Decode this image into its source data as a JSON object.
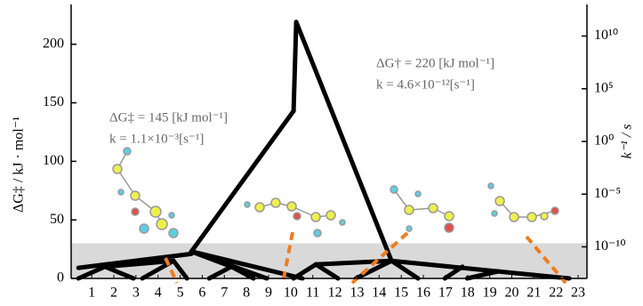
{
  "chart_data": {
    "type": "line",
    "y_label": "ΔG‡ / kJ · mol⁻¹",
    "y2_label": "k⁻¹ / s",
    "annotations": [
      {
        "text": "ΔG‡ = 145 [kJ mol⁻¹]"
      },
      {
        "text": "k = 1.1×10⁻³[s⁻¹]"
      },
      {
        "text": "ΔG† = 220 [kJ mol⁻¹]"
      },
      {
        "text": "k = 4.6×10⁻¹²[s⁻¹]"
      }
    ],
    "xlim": [
      0.07,
      23.4
    ],
    "xticks": [
      1,
      2,
      3,
      4,
      5,
      6,
      7,
      8,
      9,
      10,
      11,
      12,
      13,
      14,
      15,
      16,
      17,
      18,
      19,
      20,
      21,
      22,
      23
    ],
    "ylim": [
      0,
      234
    ],
    "yticks": [
      0,
      50,
      100,
      150,
      200
    ],
    "y2lim": [
      1e-13,
      10000000000000.0
    ],
    "y2log": true,
    "y2ticks": [
      {
        "value": 10000000000.0,
        "label": "10¹⁰"
      },
      {
        "value": 100000.0,
        "label": "10⁵"
      },
      {
        "value": 1,
        "label": "10⁰"
      },
      {
        "value": 1e-05,
        "label": "10⁻⁵"
      },
      {
        "value": 1e-10,
        "label": "10⁻¹⁰"
      }
    ],
    "band": [
      0,
      30
    ],
    "band_color": "#d9d9d9",
    "color": "#000000",
    "segments": [
      [
        5.51,
        23,
        10.13,
        143
      ],
      [
        10.13,
        143,
        10.25,
        219
      ],
      [
        10.25,
        219,
        14.56,
        15
      ],
      [
        0.4,
        9,
        5.51,
        21
      ],
      [
        0.4,
        0,
        1.6,
        10
      ],
      [
        1.6,
        10,
        2.89,
        0
      ],
      [
        1.6,
        10,
        4.7,
        15
      ],
      [
        4.7,
        15,
        5.31,
        0
      ],
      [
        3.29,
        0,
        4.7,
        15
      ],
      [
        5.51,
        23,
        8.92,
        0
      ],
      [
        5.51,
        23,
        7.32,
        10
      ],
      [
        7.32,
        10,
        6.31,
        0
      ],
      [
        7.32,
        10,
        8.32,
        0
      ],
      [
        5.51,
        23,
        10.53,
        0
      ],
      [
        14.56,
        15,
        11.14,
        12
      ],
      [
        11.14,
        12,
        10.13,
        0
      ],
      [
        11.14,
        12,
        12.14,
        0
      ],
      [
        14.56,
        15,
        15.76,
        0
      ],
      [
        14.56,
        15,
        19.38,
        6
      ],
      [
        19.38,
        6,
        17.98,
        0
      ],
      [
        19.38,
        6,
        22.6,
        0
      ],
      [
        14.56,
        15,
        12.95,
        0
      ],
      [
        17.77,
        10,
        16.97,
        0
      ]
    ]
  }
}
